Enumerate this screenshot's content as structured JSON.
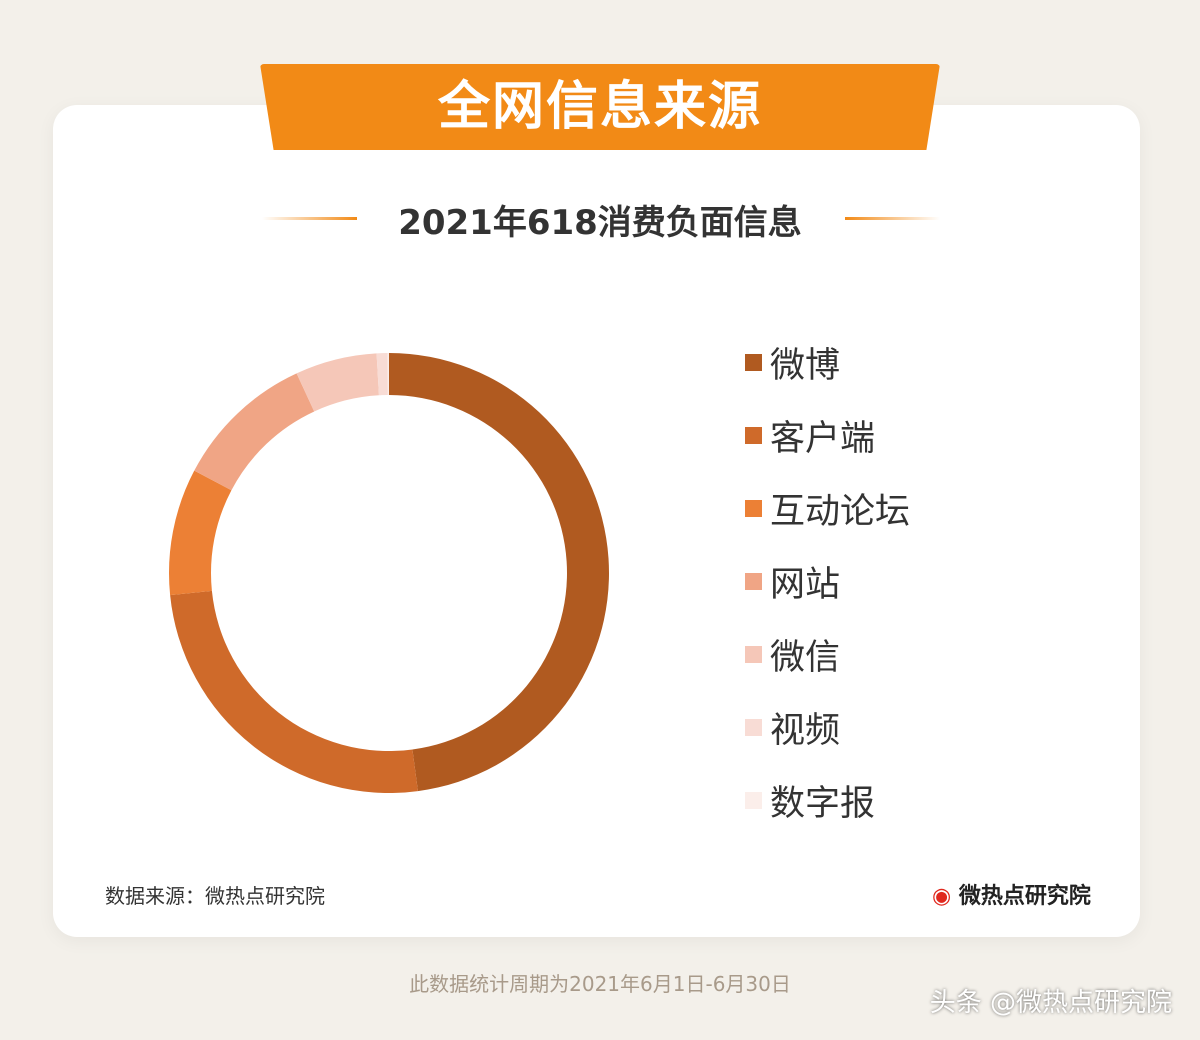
{
  "header": {
    "title": "全网信息来源",
    "subtitle": "2021年618消费负面信息"
  },
  "chart_data": {
    "type": "pie",
    "donut": true,
    "title": "2021年618消费负面信息",
    "categories": [
      "微博",
      "客户端",
      "互动论坛",
      "网站",
      "微信",
      "视频",
      "数字报"
    ],
    "values": [
      47.9,
      25.5,
      9.3,
      10.4,
      6.0,
      0.8,
      0.1
    ],
    "unit": "%",
    "colors": [
      "#B05A20",
      "#CF6A2A",
      "#EC8035",
      "#F0A585",
      "#F5C7B8",
      "#F8DCD5",
      "#FBEEEA"
    ],
    "legend": "right"
  },
  "footer": {
    "source": "数据来源：微热点研究院",
    "logo": "微热点研究院",
    "period": "此数据统计周期为2021年6月1日-6月30日",
    "watermark": "头条 @微热点研究院"
  }
}
